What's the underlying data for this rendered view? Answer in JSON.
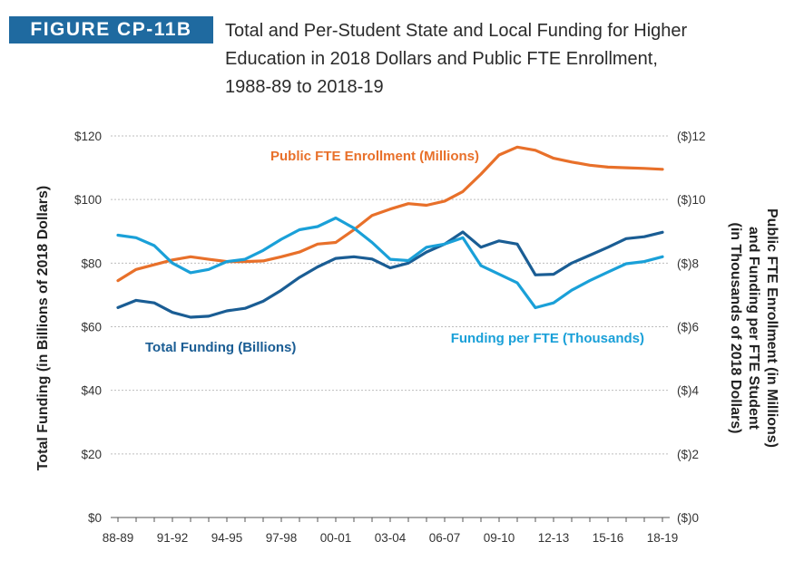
{
  "figure": {
    "label": "FIGURE CP-11B",
    "title_lines": [
      "Total and Per-Student State and Local Funding for Higher",
      "Education in 2018 Dollars and Public FTE Enrollment,",
      "1988-89 to 2018-19"
    ]
  },
  "chart_data": {
    "type": "line",
    "x": [
      "88-89",
      "89-90",
      "90-91",
      "91-92",
      "92-93",
      "93-94",
      "94-95",
      "95-96",
      "96-97",
      "97-98",
      "98-99",
      "99-00",
      "00-01",
      "01-02",
      "02-03",
      "03-04",
      "04-05",
      "05-06",
      "06-07",
      "07-08",
      "08-09",
      "09-10",
      "10-11",
      "11-12",
      "12-13",
      "13-14",
      "14-15",
      "15-16",
      "16-17",
      "17-18",
      "18-19"
    ],
    "x_tick_labels": [
      "88-89",
      "91-92",
      "94-95",
      "97-98",
      "00-01",
      "03-04",
      "06-07",
      "09-10",
      "12-13",
      "15-16",
      "18-19"
    ],
    "y_left": {
      "label": "Total Funding (in Billions of 2018 Dollars)",
      "range": [
        0,
        120
      ],
      "ticks": [
        0,
        20,
        40,
        60,
        80,
        100,
        120
      ],
      "tick_labels": [
        "$0",
        "$20",
        "$40",
        "$60",
        "$80",
        "$100",
        "$120"
      ]
    },
    "y_right": {
      "label_lines": [
        "Public FTE Enrollment (in Millions)",
        "and Funding per FTE Student",
        "(in Thousands of 2018 Dollars)"
      ],
      "range": [
        0,
        12
      ],
      "ticks": [
        0,
        2,
        4,
        6,
        8,
        10,
        12
      ],
      "tick_labels": [
        "($)0",
        "($)2",
        "($)4",
        "($)6",
        "($)8",
        "($)10",
        "($)12"
      ]
    },
    "grid": "horizontal",
    "series": [
      {
        "name": "Public FTE Enrollment (Millions)",
        "axis": "right",
        "color": "#e8702a",
        "values": [
          7.45,
          7.8,
          7.95,
          8.1,
          8.2,
          8.12,
          8.05,
          8.05,
          8.07,
          8.2,
          8.35,
          8.6,
          8.65,
          9.05,
          9.5,
          9.7,
          9.87,
          9.82,
          9.95,
          10.25,
          10.8,
          11.4,
          11.65,
          11.55,
          11.3,
          11.18,
          11.08,
          11.02,
          11.0,
          10.98,
          10.95
        ]
      },
      {
        "name": "Total Funding (Billions)",
        "axis": "left",
        "color": "#1a5d94",
        "values": [
          66,
          68.3,
          67.5,
          64.5,
          63,
          63.3,
          65,
          65.8,
          68,
          71.5,
          75.5,
          78.8,
          81.5,
          82,
          81.3,
          78.5,
          80,
          83.5,
          86,
          89.8,
          85,
          87,
          86,
          76.3,
          76.5,
          80,
          82.5,
          85,
          87.7,
          88.3,
          89.7
        ]
      },
      {
        "name": "Funding per FTE (Thousands)",
        "axis": "right",
        "color": "#1aa0d8",
        "values": [
          8.88,
          8.8,
          8.55,
          8.0,
          7.7,
          7.8,
          8.05,
          8.12,
          8.4,
          8.75,
          9.05,
          9.15,
          9.42,
          9.1,
          8.65,
          8.12,
          8.08,
          8.5,
          8.6,
          8.8,
          7.92,
          7.65,
          7.38,
          6.6,
          6.75,
          7.15,
          7.45,
          7.72,
          7.98,
          8.05,
          8.2
        ]
      }
    ]
  }
}
